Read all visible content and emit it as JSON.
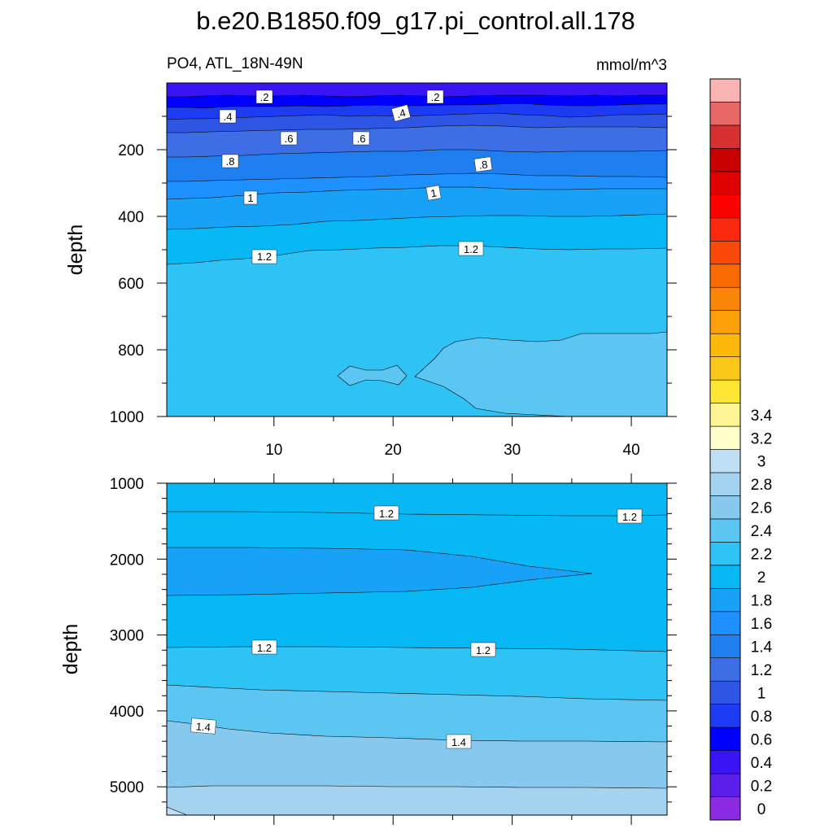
{
  "title": "b.e20.B1850.f09_g17.pi_control.all.178",
  "subtitle_left": "PO4, ATL_18N-49N",
  "subtitle_right": "mmol/m^3",
  "chart_data": [
    {
      "type": "contour",
      "panel": "upper",
      "ylabel": "depth",
      "xlabel": "",
      "xlim": [
        1,
        43
      ],
      "ylim": [
        1000,
        0
      ],
      "xticks": [
        10,
        20,
        30,
        40
      ],
      "yticks": [
        200,
        400,
        600,
        800,
        1000
      ],
      "levels_shown": [
        0.2,
        0.4,
        0.6,
        0.8,
        1.0,
        1.2,
        1.4
      ],
      "contour_labels": [
        {
          "text": ".2",
          "x": 9,
          "y": 38
        },
        {
          "text": ".2",
          "x": 23.5,
          "y": 38
        },
        {
          "text": ".4",
          "x": 6,
          "y": 108
        },
        {
          "text": ".4",
          "x": 21,
          "y": 103
        },
        {
          "text": ".6",
          "x": 11.5,
          "y": 170
        },
        {
          "text": ".6",
          "x": 17.5,
          "y": 170
        },
        {
          "text": ".8",
          "x": 6,
          "y": 232
        },
        {
          "text": ".8",
          "x": 27,
          "y": 245
        },
        {
          "text": "1",
          "x": 9,
          "y": 335
        },
        {
          "text": "1",
          "x": 23.5,
          "y": 320
        },
        {
          "text": "1.2",
          "x": 9.5,
          "y": 522
        },
        {
          "text": "1.2",
          "x": 26.5,
          "y": 495
        }
      ],
      "contour_depths": [
        {
          "level": 0.2,
          "left": 40,
          "right": 42
        },
        {
          "level": 0.4,
          "left": 100,
          "right": 103
        },
        {
          "level": 0.6,
          "left": 160,
          "right": 162
        },
        {
          "level": 0.8,
          "left": 250,
          "right": 258
        },
        {
          "level": 1.0,
          "left": 380,
          "right": 372
        },
        {
          "level": 1.2,
          "left": 540,
          "right": 500
        },
        {
          "level": 1.4,
          "left": null,
          "right": 745
        }
      ]
    },
    {
      "type": "contour",
      "panel": "lower",
      "ylabel": "depth",
      "xlabel": "",
      "xlim": [
        1,
        43
      ],
      "ylim": [
        5350,
        1000
      ],
      "xticks": [
        10,
        20,
        30,
        40
      ],
      "yticks": [
        1000,
        2000,
        3000,
        4000,
        5000
      ],
      "contour_labels": [
        {
          "text": "1.2",
          "x": 20,
          "y": 1400
        },
        {
          "text": "1.2",
          "x": 40.5,
          "y": 1450
        },
        {
          "text": "1.2",
          "x": 9,
          "y": 3170
        },
        {
          "text": "1.2",
          "x": 27.5,
          "y": 3190
        },
        {
          "text": "1.4",
          "x": 4,
          "y": 4190
        },
        {
          "text": "1.4",
          "x": 25.5,
          "y": 4390
        }
      ],
      "contour_depths": [
        {
          "level": 1.2,
          "left": 1380,
          "right": 1430
        },
        {
          "level": 1.0,
          "left": 1850,
          "right": 2400,
          "tip_x": 36.5
        },
        {
          "level": 1.2,
          "left": 3160,
          "right": 3220
        },
        {
          "level": 1.3,
          "left": 3650,
          "right": 3870
        },
        {
          "level": 1.4,
          "left": 4120,
          "right": 4400
        },
        {
          "level": 1.5,
          "left": 5000,
          "right": 5000
        }
      ]
    }
  ],
  "colorbar": {
    "labels": [
      "0",
      "0.2",
      "0.4",
      "0.6",
      "0.8",
      "1",
      "1.2",
      "1.4",
      "1.6",
      "1.8",
      "2",
      "2.2",
      "2.4",
      "2.6",
      "2.8",
      "3",
      "3.2",
      "3.4"
    ],
    "colors": [
      "#8a2be2",
      "#5c1eea",
      "#3b14f5",
      "#0000ff",
      "#1c3bf2",
      "#2f55e5",
      "#3e6ee6",
      "#1f7ff0",
      "#1e90ff",
      "#17a2f7",
      "#08b8f5",
      "#2fc3f5",
      "#5cc6f2",
      "#87c8ee",
      "#a4d3f0",
      "#bfe0f4",
      "#ffffcc",
      "#fff594",
      "#ffe633",
      "#fcc918",
      "#fdb80c",
      "#fca00a",
      "#fb8506",
      "#fa6a02",
      "#fa4a0a",
      "#fb2a0f",
      "#ff0000",
      "#e10000",
      "#c80000",
      "#d83030",
      "#e86868",
      "#fbb4b4"
    ]
  }
}
